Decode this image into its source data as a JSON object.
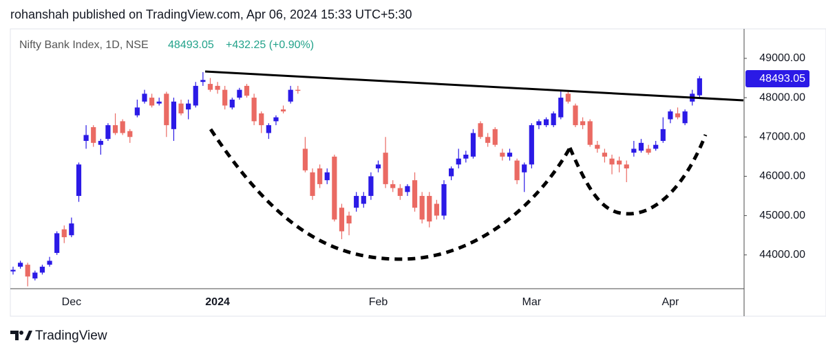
{
  "header": {
    "publisher": "rohanshah published on TradingView.com, Apr 06, 2024 15:33 UTC+5:30"
  },
  "footer": {
    "brand": "TradingView"
  },
  "chart_data": {
    "type": "candlestick",
    "title": "Nifty Bank Index, 1D, NSE",
    "last_price": "48493.05",
    "change": "+432.25 (+0.90%)",
    "up_color": "#2b1ae6",
    "down_color": "#ea6a63",
    "categories": [
      null,
      null,
      null,
      null,
      null,
      null,
      null,
      null,
      "Dec",
      null,
      null,
      null,
      null,
      null,
      null,
      null,
      null,
      null,
      null,
      null,
      null,
      null,
      null,
      null,
      null,
      null,
      null,
      null,
      "2024",
      null,
      null,
      null,
      null,
      null,
      null,
      null,
      null,
      null,
      null,
      null,
      null,
      null,
      null,
      null,
      null,
      null,
      null,
      null,
      null,
      null,
      "Feb",
      null,
      null,
      null,
      null,
      null,
      null,
      null,
      null,
      null,
      null,
      null,
      null,
      null,
      null,
      null,
      null,
      null,
      null,
      null,
      null,
      "Mar",
      null,
      null,
      null,
      null,
      null,
      null,
      null,
      null,
      null,
      null,
      null,
      null,
      null,
      null,
      null,
      null,
      null,
      null,
      "Apr",
      null,
      null,
      null,
      null
    ],
    "open": [
      43580,
      43700,
      43750,
      43400,
      43550,
      43750,
      44050,
      44650,
      44500,
      45500,
      46900,
      47250,
      46800,
      46950,
      47300,
      47400,
      47150,
      47550,
      47900,
      48000,
      47850,
      48100,
      47200,
      47850,
      47700,
      47800,
      48400,
      48350,
      48300,
      48200,
      47750,
      48000,
      48300,
      48000,
      47600,
      47100,
      47400,
      47700,
      47900,
      48200,
      46700,
      46100,
      46200,
      45900,
      46500,
      45200,
      45000,
      45200,
      45300,
      45500,
      46200,
      46600,
      45800,
      45700,
      45600,
      45900,
      45500,
      45500,
      45300,
      45000,
      46000,
      46300,
      46450,
      46500,
      47350,
      47000,
      47200,
      46600,
      46500,
      46400,
      46100,
      46300,
      47300,
      47300,
      47300,
      47500,
      48100,
      47800,
      47400,
      47400,
      46800,
      46600,
      46450,
      46400,
      46300,
      46600,
      46650,
      46700,
      46700,
      46900,
      47450,
      47600,
      47350,
      47900,
      48060
    ],
    "high": [
      43700,
      43850,
      43800,
      43600,
      43750,
      43950,
      44600,
      44750,
      44950,
      46350,
      47300,
      47300,
      46950,
      47350,
      47600,
      47450,
      47200,
      47950,
      48200,
      48100,
      48000,
      48150,
      48000,
      47950,
      47950,
      48400,
      48650,
      48500,
      48400,
      48300,
      48000,
      48250,
      48350,
      48100,
      47650,
      47350,
      47550,
      47800,
      48300,
      48300,
      47000,
      46200,
      46300,
      46200,
      46550,
      45300,
      45100,
      45600,
      45600,
      46100,
      46400,
      47000,
      45900,
      45800,
      45800,
      46100,
      45600,
      45600,
      45400,
      45900,
      46250,
      46700,
      46650,
      47200,
      47400,
      47100,
      47250,
      46700,
      46700,
      46450,
      46350,
      47350,
      47450,
      47500,
      47650,
      48200,
      48150,
      47850,
      47500,
      47450,
      46900,
      46700,
      46550,
      46500,
      46400,
      46900,
      46950,
      46800,
      46900,
      47500,
      47700,
      47750,
      47700,
      48200,
      48550
    ],
    "low": [
      43500,
      43650,
      43200,
      43350,
      43500,
      43700,
      44000,
      44300,
      44450,
      45350,
      46700,
      46750,
      46550,
      46900,
      47050,
      47050,
      46850,
      47500,
      47850,
      47750,
      47800,
      47000,
      46900,
      47550,
      47450,
      47750,
      48300,
      48150,
      48100,
      47700,
      47700,
      47950,
      48000,
      47300,
      47100,
      46950,
      47300,
      47600,
      47850,
      48100,
      46100,
      45400,
      45700,
      45800,
      44850,
      44400,
      44500,
      45100,
      45200,
      45400,
      46100,
      45700,
      45600,
      45400,
      45500,
      45100,
      44800,
      44700,
      44900,
      44900,
      45900,
      46200,
      46350,
      46450,
      46950,
      46750,
      46750,
      46400,
      46400,
      45800,
      45600,
      46200,
      47200,
      47250,
      47250,
      47450,
      47850,
      47250,
      47200,
      46750,
      46600,
      46350,
      46050,
      46100,
      45850,
      46500,
      46600,
      46550,
      46650,
      46850,
      47350,
      47450,
      47300,
      47800,
      48000
    ],
    "close": [
      43620,
      43800,
      43450,
      43550,
      43700,
      43850,
      44550,
      44450,
      44800,
      46300,
      47050,
      46850,
      46900,
      47300,
      47100,
      47100,
      47000,
      47750,
      48100,
      47800,
      47900,
      47300,
      47900,
      47600,
      47850,
      48300,
      48450,
      48200,
      48200,
      47800,
      47950,
      48200,
      48050,
      47400,
      47300,
      47300,
      47500,
      47650,
      48200,
      48180,
      46150,
      45500,
      45800,
      46100,
      44900,
      44600,
      44800,
      45500,
      45500,
      46000,
      46300,
      45800,
      45700,
      45500,
      45750,
      45200,
      44900,
      44850,
      45000,
      45800,
      46200,
      46450,
      46550,
      47100,
      47000,
      46850,
      46800,
      46500,
      46600,
      45900,
      46300,
      47300,
      47400,
      47450,
      47600,
      48000,
      47900,
      47300,
      47300,
      46800,
      46700,
      46500,
      46300,
      46300,
      46200,
      46700,
      46850,
      46600,
      46800,
      47200,
      47650,
      47500,
      47650,
      48100,
      48493.05
    ],
    "ylim": [
      43140,
      49750
    ],
    "yticks": [
      {
        "value": 44000,
        "label": "44000.00"
      },
      {
        "value": 45000,
        "label": "45000.00"
      },
      {
        "value": 46000,
        "label": "46000.00"
      },
      {
        "value": 47000,
        "label": "47000.00"
      },
      {
        "value": 48000,
        "label": "48000.00"
      },
      {
        "value": 49000,
        "label": "49000.00"
      }
    ],
    "grid": false
  }
}
